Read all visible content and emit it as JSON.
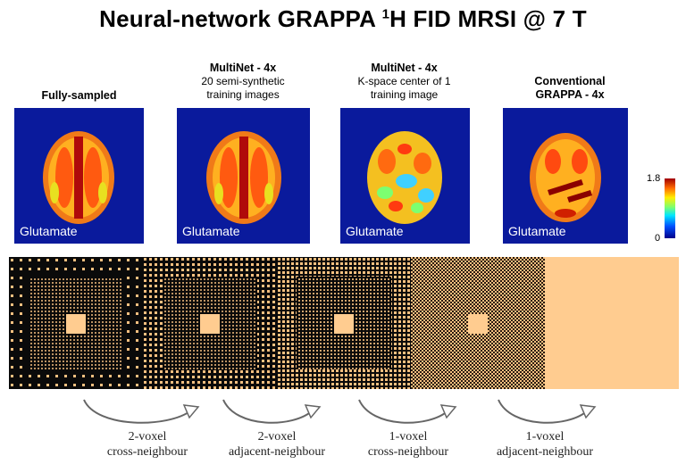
{
  "title": {
    "prefix": "Neural-network GRAPPA ",
    "sup": "1",
    "suffix": "H FID MRSI @ 7 T"
  },
  "columns": [
    {
      "heading": "Fully-sampled",
      "sub": ""
    },
    {
      "heading": "MultiNet - 4x",
      "sub": "20 semi-synthetic training images"
    },
    {
      "heading": "MultiNet - 4x",
      "sub": "K-space center of 1 training image"
    },
    {
      "heading": "Conventional GRAPPA - 4x",
      "sub": ""
    }
  ],
  "map_label": "Glutamate",
  "colorbar": {
    "max": "1.8",
    "min": "0"
  },
  "captions": [
    {
      "line1": "2-voxel",
      "line2": "cross-neighbour"
    },
    {
      "line1": "2-voxel",
      "line2": "adjacent-neighbour"
    },
    {
      "line1": "1-voxel",
      "line2": "cross-neighbour"
    },
    {
      "line1": "1-voxel",
      "line2": "adjacent-neighbour"
    }
  ],
  "colors": {
    "map_background": "#0a1a9c",
    "sample_dot": "#f7c080",
    "mask_background": "#0a0a0a",
    "full_fill": "#ffcc90"
  }
}
